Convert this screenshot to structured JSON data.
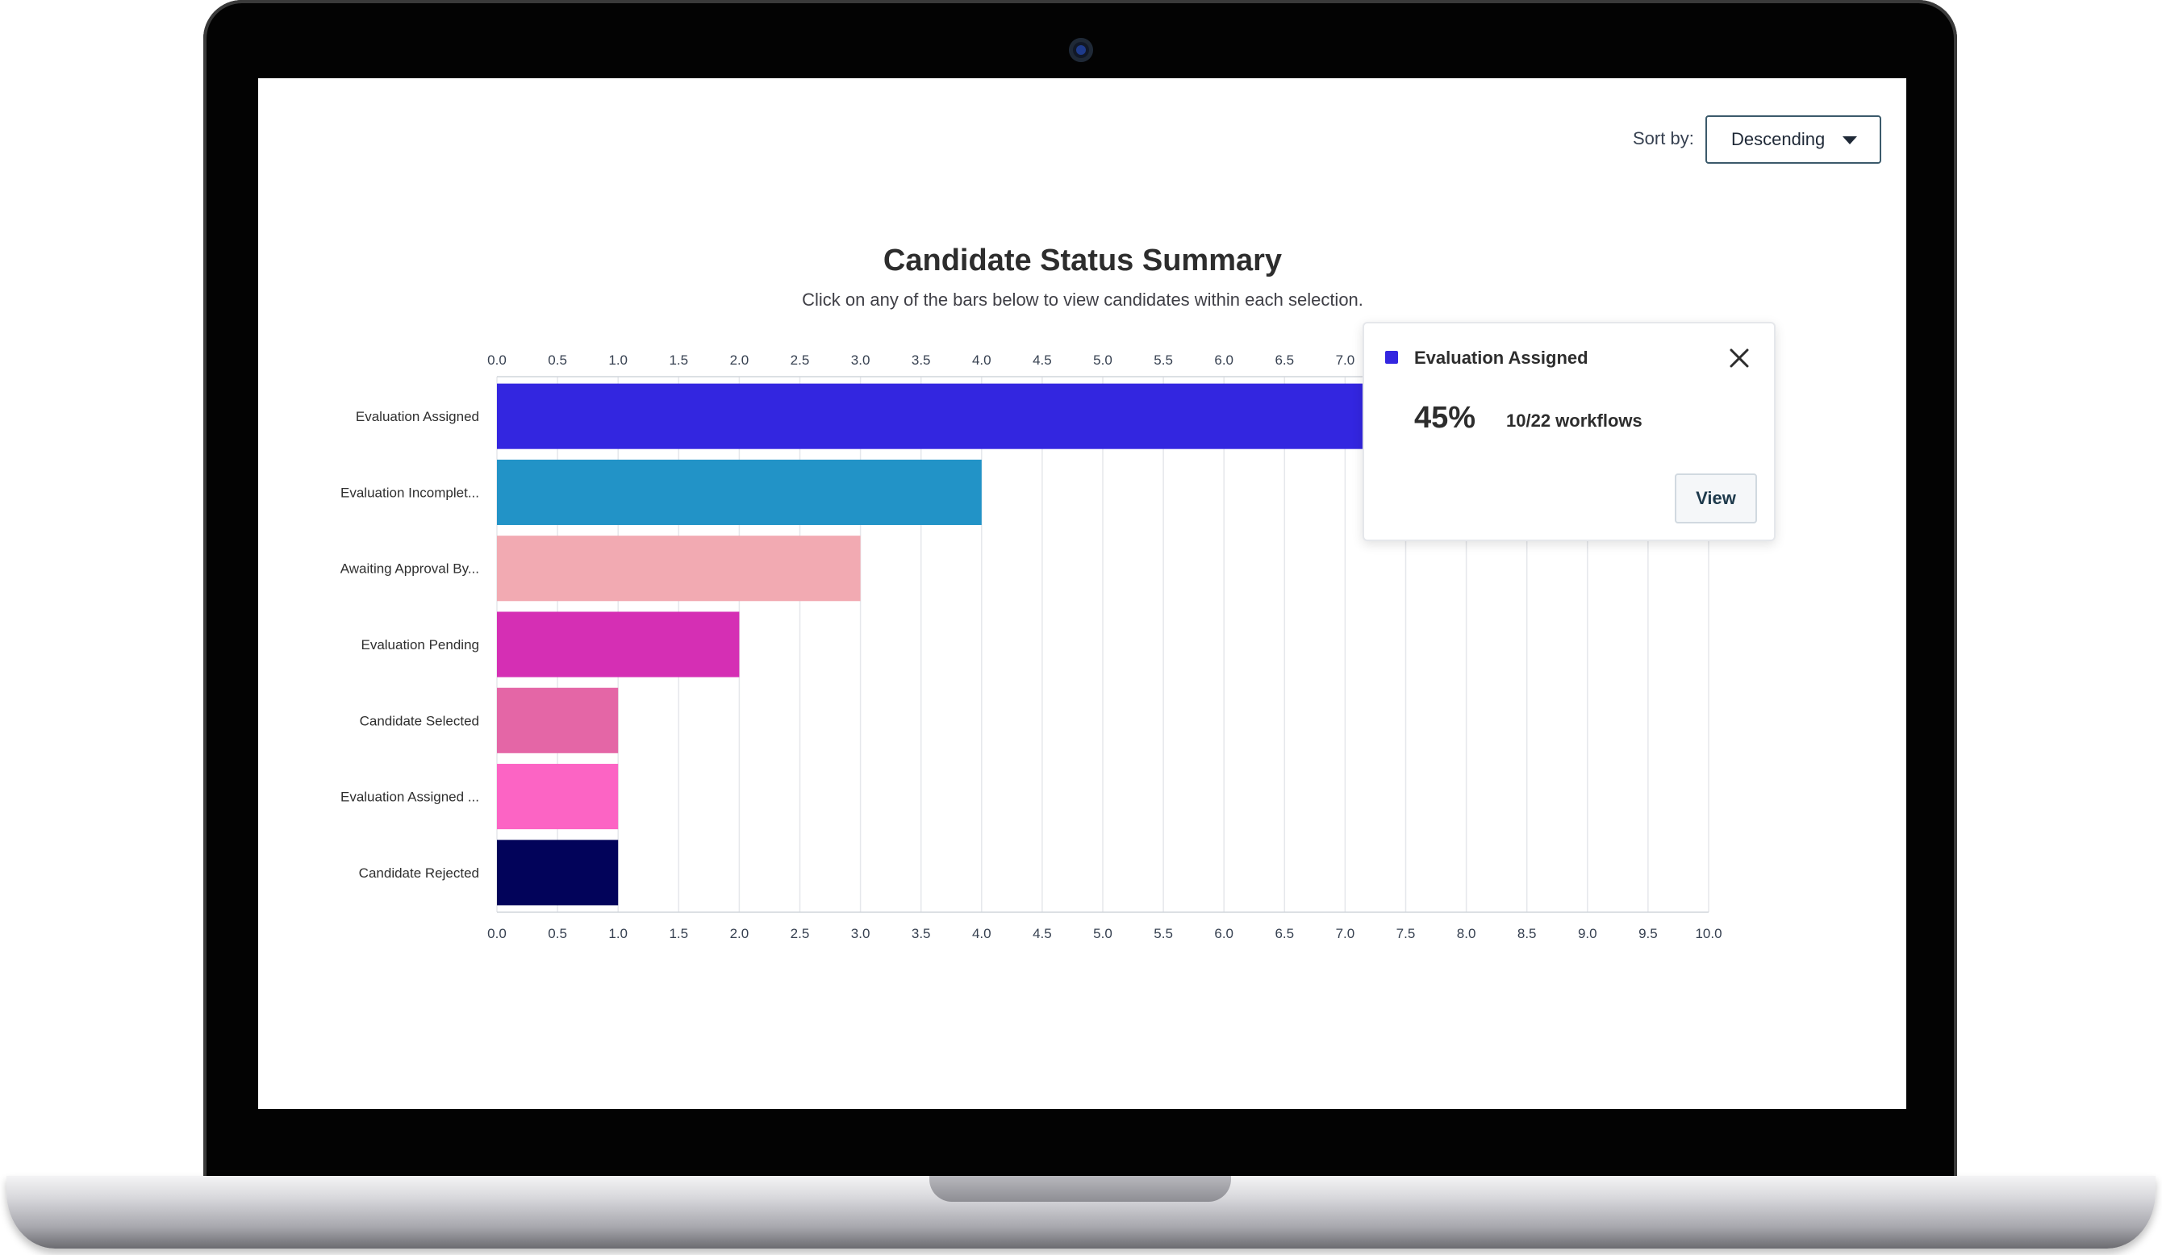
{
  "sort": {
    "label": "Sort by:",
    "value": "Descending"
  },
  "tooltip": {
    "title": "Evaluation Assigned",
    "color": "#3326e0",
    "percent": "45%",
    "count": "10/22 workflows",
    "button_label": "View",
    "close_icon": "close-icon"
  },
  "chart_data": {
    "type": "bar",
    "orientation": "horizontal",
    "title": "Candidate Status Summary",
    "subtitle": "Click on any of the bars below to view candidates within each selection.",
    "categories": [
      "Evaluation Assigned",
      "Evaluation Incomplet...",
      "Awaiting Approval By...",
      "Evaluation Pending",
      "Candidate Selected",
      "Evaluation Assigned ...",
      "Candidate Rejected"
    ],
    "values": [
      10,
      4,
      3,
      2,
      1,
      1,
      1
    ],
    "colors": [
      "#3326e0",
      "#2293c7",
      "#f2aab2",
      "#d52fb4",
      "#e466a6",
      "#fc64c4",
      "#02035a"
    ],
    "xlim": [
      0,
      10
    ],
    "ticks": [
      "0.0",
      "0.5",
      "1.0",
      "1.5",
      "2.0",
      "2.5",
      "3.0",
      "3.5",
      "4.0",
      "4.5",
      "5.0",
      "5.5",
      "6.0",
      "6.5",
      "7.0",
      "7.5",
      "8.0",
      "8.5",
      "9.0",
      "9.5",
      "10.0"
    ],
    "axes": "top and bottom",
    "grid": true
  }
}
